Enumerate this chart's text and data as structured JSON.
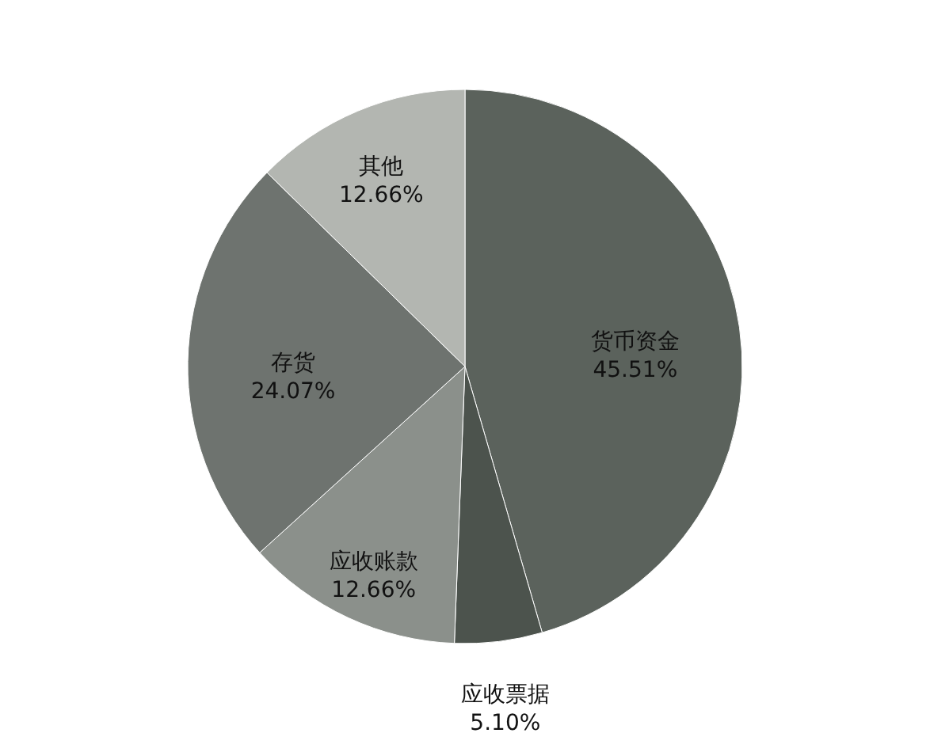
{
  "chart_data": {
    "type": "pie",
    "categories": [
      "货币资金",
      "应收票据",
      "应收账款",
      "存货",
      "其他"
    ],
    "values": [
      45.51,
      5.1,
      12.66,
      24.07,
      12.66
    ],
    "value_labels": [
      "45.51%",
      "5.10%",
      "12.66%",
      "24.07%",
      "12.66%"
    ],
    "colors": [
      "#5b625c",
      "#4c534d",
      "#8b908b",
      "#6e736f",
      "#b3b6b1"
    ]
  }
}
